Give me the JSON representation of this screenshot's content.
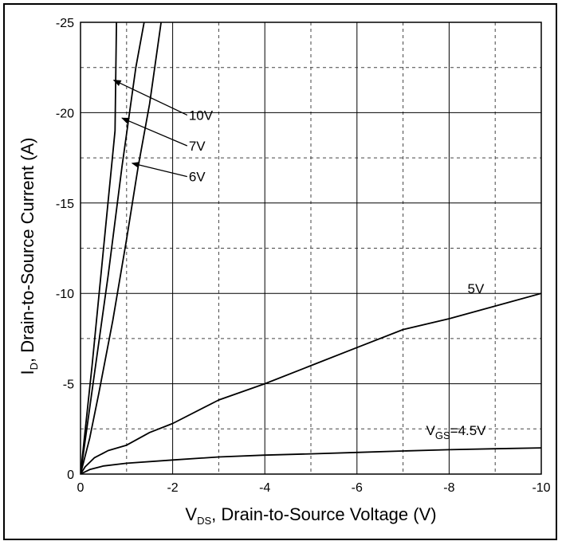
{
  "chart_data": {
    "type": "line",
    "title": "",
    "xlabel": {
      "main": "V",
      "sub": "DS",
      "rest": ", Drain-to-Source Voltage (V)"
    },
    "ylabel": {
      "main": "I",
      "sub": "D",
      "rest": ", Drain-to-Source Current (A)"
    },
    "xlim": [
      0,
      -10
    ],
    "ylim": [
      0,
      -25
    ],
    "x_ticks": [
      0,
      -2,
      -4,
      -6,
      -8,
      -10
    ],
    "y_ticks": [
      0,
      -5,
      -10,
      -15,
      -20,
      -25
    ],
    "x_tick_labels": [
      "0",
      "-2",
      "-4",
      "-6",
      "-8",
      "-10"
    ],
    "y_tick_labels": [
      "0",
      "-5",
      "-10",
      "-15",
      "-20",
      "-25"
    ],
    "grid": {
      "x_minor_step": -1,
      "y_minor_step": -2.5
    },
    "series": [
      {
        "name": "10V",
        "points": [
          [
            0,
            0
          ],
          [
            -0.25,
            -6
          ],
          [
            -0.5,
            -12.5
          ],
          [
            -0.75,
            -19
          ],
          [
            -0.78,
            -25
          ]
        ]
      },
      {
        "name": "7V",
        "points": [
          [
            0,
            0
          ],
          [
            -0.3,
            -5.5
          ],
          [
            -0.6,
            -11
          ],
          [
            -0.9,
            -17
          ],
          [
            -1.2,
            -22.5
          ],
          [
            -1.38,
            -25
          ]
        ]
      },
      {
        "name": "6V",
        "points": [
          [
            0,
            0
          ],
          [
            -0.2,
            -2
          ],
          [
            -0.4,
            -4.5
          ],
          [
            -0.7,
            -8.5
          ],
          [
            -1.0,
            -13
          ],
          [
            -1.25,
            -17
          ],
          [
            -1.5,
            -20.5
          ],
          [
            -1.75,
            -25
          ]
        ]
      },
      {
        "name": "5V",
        "points": [
          [
            0,
            0
          ],
          [
            -0.1,
            -0.4
          ],
          [
            -0.3,
            -0.9
          ],
          [
            -0.6,
            -1.3
          ],
          [
            -1,
            -1.6
          ],
          [
            -1.5,
            -2.3
          ],
          [
            -2,
            -2.8
          ],
          [
            -3,
            -4.1
          ],
          [
            -4,
            -5
          ],
          [
            -5,
            -6
          ],
          [
            -6,
            -7
          ],
          [
            -7,
            -8
          ],
          [
            -8,
            -8.6
          ],
          [
            -9,
            -9.3
          ],
          [
            -10,
            -10
          ]
        ]
      },
      {
        "name": "4.5V",
        "points": [
          [
            0,
            0
          ],
          [
            -0.2,
            -0.25
          ],
          [
            -0.5,
            -0.45
          ],
          [
            -1,
            -0.6
          ],
          [
            -2,
            -0.78
          ],
          [
            -3,
            -0.95
          ],
          [
            -4,
            -1.05
          ],
          [
            -5,
            -1.12
          ],
          [
            -6,
            -1.2
          ],
          [
            -7,
            -1.28
          ],
          [
            -8,
            -1.35
          ],
          [
            -9,
            -1.4
          ],
          [
            -10,
            -1.45
          ]
        ]
      }
    ],
    "annotations": [
      {
        "id": "10V",
        "text": "10V",
        "x": -2.35,
        "y": -19.6,
        "arrow_to": [
          -0.72,
          -21.8
        ]
      },
      {
        "id": "7V",
        "text": "7V",
        "x": -2.35,
        "y": -17.9,
        "arrow_to": [
          -0.9,
          -19.7
        ]
      },
      {
        "id": "6V",
        "text": "6V",
        "x": -2.35,
        "y": -16.2,
        "arrow_to": [
          -1.12,
          -17.2
        ]
      },
      {
        "id": "5V",
        "text": "5V",
        "x": -8.4,
        "y": -10.0
      },
      {
        "id": "vgs",
        "main": "V",
        "sub": "GS",
        "rest": "=4.5V",
        "x": -7.5,
        "y": -2.15
      }
    ]
  }
}
